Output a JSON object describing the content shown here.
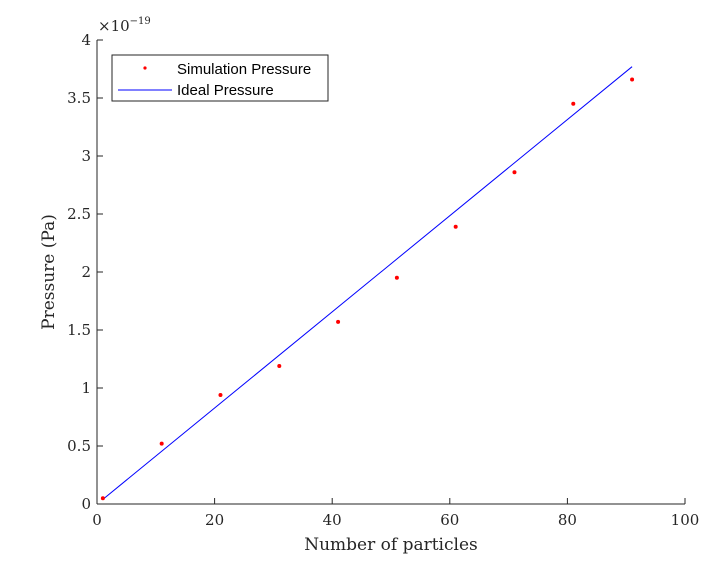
{
  "chart_data": {
    "type": "scatter",
    "xlabel": "Number of particles",
    "ylabel": "Pressure (Pa)",
    "y_exponent": "×10",
    "y_exponent_power": "−19",
    "xlim": [
      0,
      100
    ],
    "ylim": [
      0,
      4
    ],
    "xticks": [
      0,
      20,
      40,
      60,
      80,
      100
    ],
    "xtick_labels": [
      "0",
      "20",
      "40",
      "60",
      "80",
      "100"
    ],
    "yticks": [
      0,
      0.5,
      1,
      1.5,
      2,
      2.5,
      3,
      3.5,
      4
    ],
    "ytick_labels": [
      "0",
      "0.5",
      "1",
      "1.5",
      "2",
      "2.5",
      "3",
      "3.5",
      "4"
    ],
    "grid": false,
    "legend_position": "top-left",
    "series": [
      {
        "name": "Simulation Pressure",
        "kind": "points",
        "color": "#ff0000",
        "x": [
          1,
          11,
          21,
          31,
          41,
          51,
          61,
          71,
          81,
          91
        ],
        "y": [
          0.05,
          0.52,
          0.94,
          1.19,
          1.57,
          1.95,
          2.39,
          2.86,
          3.45,
          3.66
        ]
      },
      {
        "name": "Ideal Pressure",
        "kind": "line",
        "color": "#0000ff",
        "x": [
          1,
          91
        ],
        "y": [
          0.04,
          3.77
        ]
      }
    ]
  }
}
